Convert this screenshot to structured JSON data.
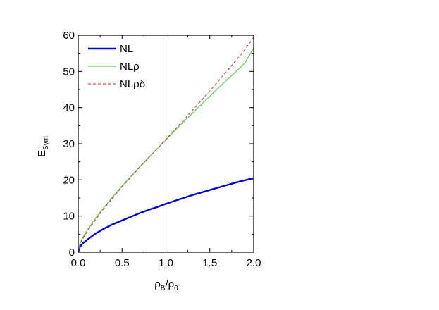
{
  "chart_data": {
    "type": "line",
    "xlabel": "ρB/ρ0",
    "xlabel_main": "ρ",
    "xlabel_sub": "B",
    "xlabel_slash": "/ρ",
    "xlabel_sub2": "0",
    "ylabel": "ESym",
    "ylabel_main": "E",
    "ylabel_sub": "Sym",
    "xlim": [
      0,
      2
    ],
    "ylim": [
      0,
      60
    ],
    "x_ticks": [
      0.0,
      0.5,
      1.0,
      1.5,
      2.0
    ],
    "x_tick_labels": [
      "0.0",
      "0.5",
      "1.0",
      "1.5",
      "2.0"
    ],
    "y_ticks": [
      0,
      10,
      20,
      30,
      40,
      50,
      60
    ],
    "y_tick_labels": [
      "0",
      "10",
      "20",
      "30",
      "40",
      "50",
      "60"
    ],
    "reference_line_x": 1.0,
    "legend_position": "top-left",
    "series": [
      {
        "name": "NL",
        "color": "#0000cc",
        "style": "solid-thick",
        "x": [
          0.0,
          0.02,
          0.05,
          0.1,
          0.2,
          0.3,
          0.4,
          0.5,
          0.6,
          0.7,
          0.8,
          0.9,
          1.0,
          1.1,
          1.2,
          1.3,
          1.4,
          1.5,
          1.6,
          1.7,
          1.8,
          1.9,
          2.0
        ],
        "values": [
          0.0,
          1.5,
          2.4,
          3.4,
          5.2,
          6.6,
          7.8,
          8.8,
          9.8,
          10.8,
          11.7,
          12.5,
          13.4,
          14.2,
          15.0,
          15.8,
          16.5,
          17.2,
          17.9,
          18.6,
          19.3,
          19.9,
          20.5
        ]
      },
      {
        "name": "NLρ",
        "color": "#33cc33",
        "style": "solid-thin",
        "x": [
          0.0,
          0.02,
          0.05,
          0.1,
          0.2,
          0.3,
          0.4,
          0.5,
          0.6,
          0.7,
          0.8,
          0.9,
          1.0,
          1.1,
          1.2,
          1.3,
          1.4,
          1.5,
          1.6,
          1.7,
          1.8,
          1.9,
          2.0
        ],
        "values": [
          0.0,
          2.5,
          4.0,
          6.0,
          9.5,
          12.6,
          15.5,
          18.3,
          21.0,
          23.6,
          26.1,
          28.6,
          31.1,
          33.6,
          36.0,
          38.4,
          40.8,
          43.1,
          45.5,
          47.8,
          50.0,
          52.3,
          56.5
        ]
      },
      {
        "name": "NLρδ",
        "color": "#dd2222",
        "style": "dashed",
        "x": [
          0.0,
          0.02,
          0.05,
          0.1,
          0.2,
          0.3,
          0.4,
          0.5,
          0.6,
          0.7,
          0.8,
          0.9,
          1.0,
          1.1,
          1.2,
          1.3,
          1.4,
          1.5,
          1.6,
          1.7,
          1.8,
          1.9,
          2.0
        ],
        "values": [
          0.0,
          2.2,
          3.7,
          5.6,
          9.1,
          12.3,
          15.2,
          18.1,
          20.8,
          23.5,
          26.1,
          28.6,
          31.2,
          33.9,
          36.5,
          39.2,
          41.9,
          44.6,
          47.4,
          50.2,
          53.1,
          56.0,
          59.5
        ]
      }
    ]
  }
}
